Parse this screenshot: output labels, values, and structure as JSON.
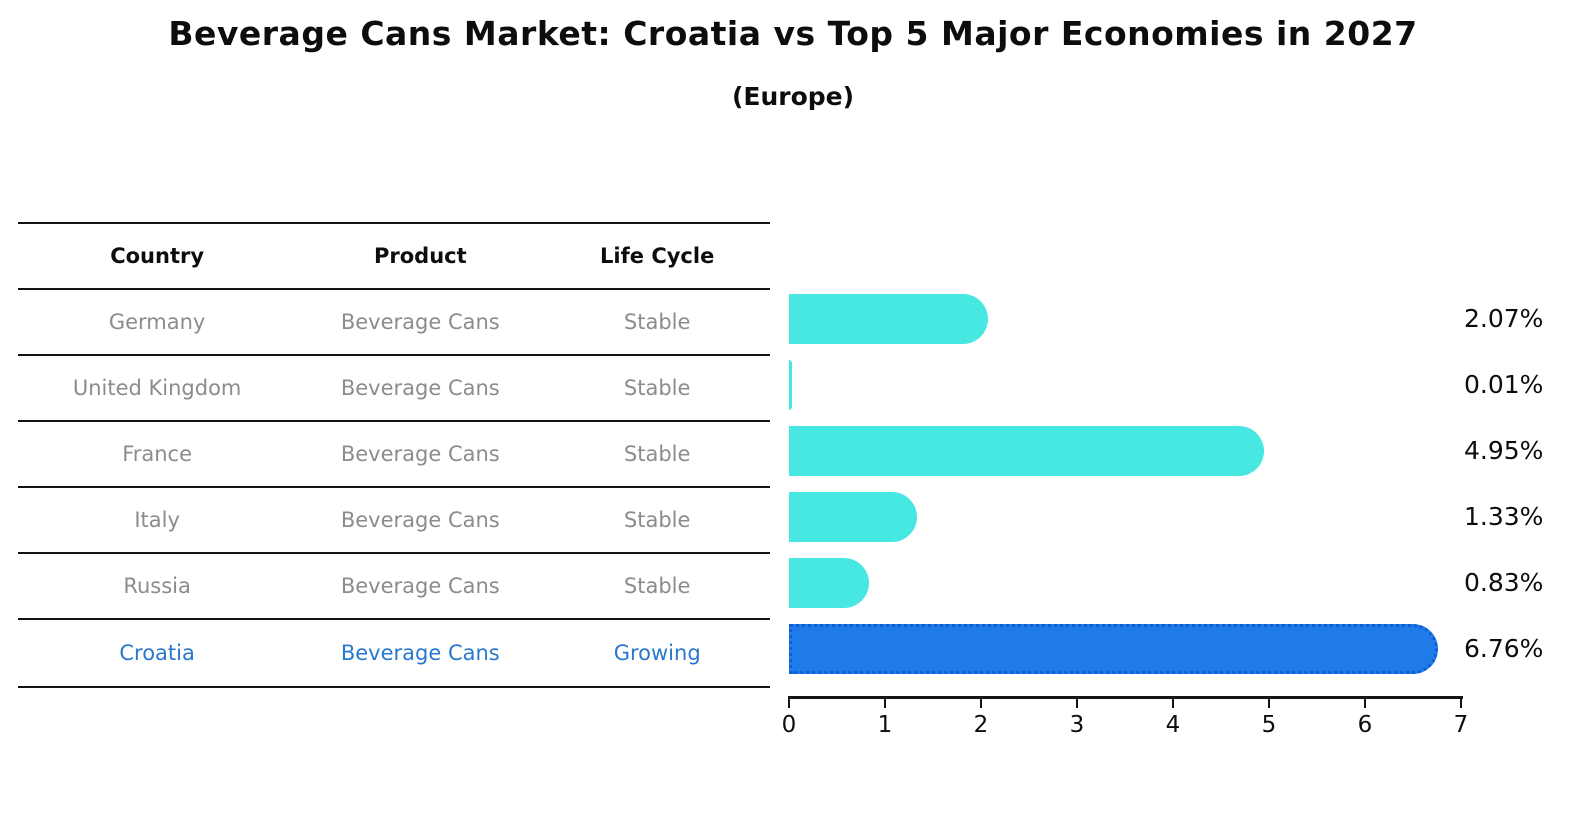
{
  "title": "Beverage Cans Market: Croatia vs Top 5 Major Economies in 2027",
  "subtitle": "(Europe)",
  "table": {
    "headers": [
      "Country",
      "Product",
      "Life Cycle"
    ],
    "rows": [
      {
        "country": "Germany",
        "product": "Beverage Cans",
        "life_cycle": "Stable",
        "highlight": false
      },
      {
        "country": "United Kingdom",
        "product": "Beverage Cans",
        "life_cycle": "Stable",
        "highlight": false
      },
      {
        "country": "France",
        "product": "Beverage Cans",
        "life_cycle": "Stable",
        "highlight": false
      },
      {
        "country": "Italy",
        "product": "Beverage Cans",
        "life_cycle": "Stable",
        "highlight": false
      },
      {
        "country": "Russia",
        "product": "Beverage Cans",
        "life_cycle": "Stable",
        "highlight": false
      },
      {
        "country": "Croatia",
        "product": "Beverage Cans",
        "life_cycle": "Growing",
        "highlight": true
      }
    ]
  },
  "chart_data": {
    "type": "bar",
    "orientation": "horizontal",
    "title": "Beverage Cans Market: Croatia vs Top 5 Major Economies in 2027 (Europe)",
    "categories": [
      "Germany",
      "United Kingdom",
      "France",
      "Italy",
      "Russia",
      "Croatia"
    ],
    "values": [
      2.07,
      0.01,
      4.95,
      1.33,
      0.83,
      6.76
    ],
    "value_labels": [
      "2.07%",
      "0.01%",
      "4.95%",
      "1.33%",
      "0.83%",
      "6.76%"
    ],
    "xlabel": "",
    "ylabel": "",
    "xlim": [
      0,
      7
    ],
    "xticks": [
      0,
      1,
      2,
      3,
      4,
      5,
      6,
      7
    ],
    "xtick_labels": [
      "0",
      "1",
      "2",
      "3",
      "4",
      "5",
      "6",
      "7"
    ],
    "grid": false,
    "legend": "none",
    "highlight_index": 5,
    "bar_color_default": "#46e8e1",
    "bar_color_highlight": "#1f7be8",
    "bar_border_highlight": "#0e5fd6"
  },
  "colors": {
    "accent_blue": "#2878cd",
    "muted_text": "#8c8c8c"
  }
}
